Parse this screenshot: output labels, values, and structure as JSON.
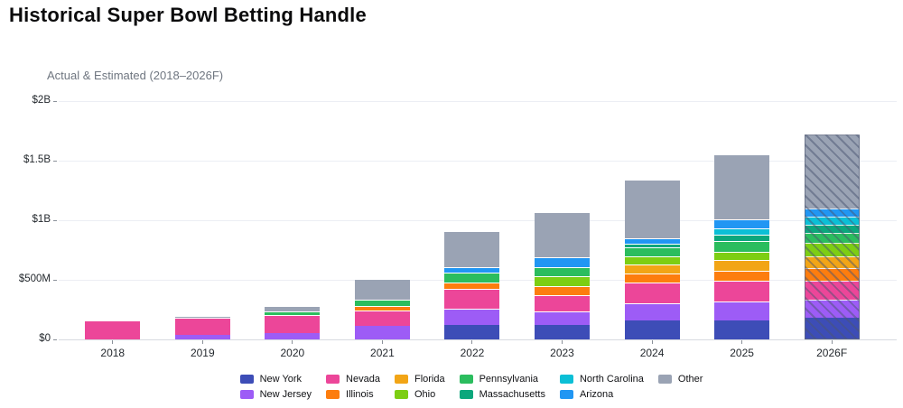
{
  "header": {
    "title": "Historical Super Bowl Betting Handle"
  },
  "chart_data": {
    "type": "bar",
    "stacked": true,
    "title": "Historical Super Bowl Betting Handle",
    "subtitle": "Actual & Estimated (2018–2026F)",
    "unit": "USD millions",
    "categories": [
      "2018",
      "2019",
      "2020",
      "2021",
      "2022",
      "2023",
      "2024",
      "2025",
      "2026F"
    ],
    "forecast_category": "2026F",
    "series": [
      {
        "name": "New York",
        "color": "#3d4db7",
        "values": [
          0,
          0,
          0,
          0,
          120,
          125,
          160,
          160,
          180
        ]
      },
      {
        "name": "New Jersey",
        "color": "#9d5cf6",
        "values": [
          0,
          35,
          55,
          115,
          140,
          110,
          140,
          155,
          155
        ]
      },
      {
        "name": "Nevada",
        "color": "#ec4699",
        "values": [
          155,
          145,
          150,
          125,
          165,
          140,
          175,
          175,
          160
        ]
      },
      {
        "name": "Illinois",
        "color": "#fd7d0e",
        "values": [
          0,
          0,
          0,
          40,
          55,
          70,
          80,
          85,
          105
        ]
      },
      {
        "name": "Florida",
        "color": "#f2a516",
        "values": [
          0,
          0,
          0,
          0,
          0,
          0,
          75,
          90,
          100
        ]
      },
      {
        "name": "Ohio",
        "color": "#7dce13",
        "values": [
          0,
          0,
          0,
          0,
          0,
          85,
          70,
          70,
          110
        ]
      },
      {
        "name": "Pennsylvania",
        "color": "#2bbd5e",
        "values": [
          0,
          0,
          30,
          55,
          80,
          80,
          70,
          90,
          85
        ]
      },
      {
        "name": "Massachusetts",
        "color": "#0ba77c",
        "values": [
          0,
          0,
          0,
          0,
          0,
          0,
          35,
          55,
          65
        ]
      },
      {
        "name": "North Carolina",
        "color": "#0bbfd6",
        "values": [
          0,
          0,
          0,
          0,
          0,
          0,
          0,
          50,
          70
        ]
      },
      {
        "name": "Arizona",
        "color": "#2196f3",
        "values": [
          0,
          0,
          0,
          0,
          50,
          80,
          45,
          80,
          70
        ]
      },
      {
        "name": "Other",
        "color": "#9aa3b4",
        "values": [
          0,
          10,
          45,
          175,
          300,
          380,
          490,
          540,
          620
        ]
      }
    ],
    "totals": [
      155,
      190,
      280,
      510,
      910,
      1070,
      1340,
      1550,
      1720
    ],
    "y_ticks": [
      {
        "label": "$2B",
        "value": 2000
      },
      {
        "label": "$1.5B",
        "value": 1500
      },
      {
        "label": "$1B",
        "value": 1000
      },
      {
        "label": "$500M",
        "value": 500
      },
      {
        "label": "$0",
        "value": 0
      }
    ],
    "ylim": [
      0,
      2000
    ],
    "grid": true,
    "legend_position": "bottom"
  }
}
